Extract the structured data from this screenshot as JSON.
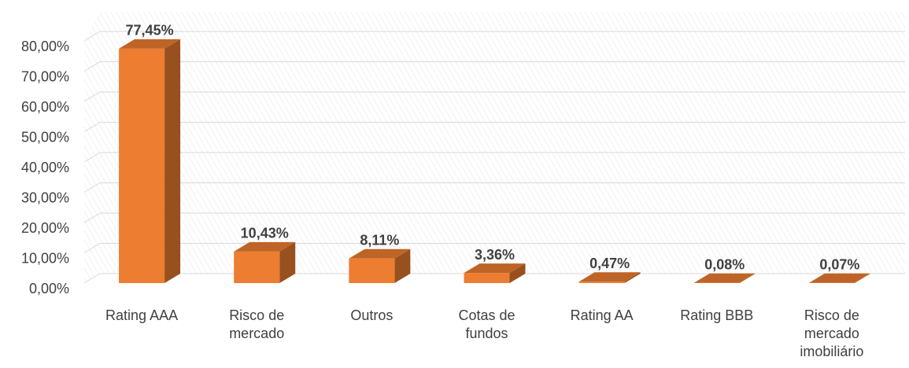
{
  "chart_data": {
    "type": "bar3d",
    "categories": [
      "Rating AAA",
      "Risco de mercado",
      "Outros",
      "Cotas de fundos",
      "Rating AA",
      "Rating BBB",
      "Risco de mercado imobiliário"
    ],
    "values": [
      77.45,
      10.43,
      8.11,
      3.36,
      0.47,
      0.08,
      0.07
    ],
    "value_labels": [
      "77,45%",
      "10,43%",
      "8,11%",
      "3,36%",
      "0,47%",
      "0,08%",
      "0,07%"
    ],
    "color": "#ed7d31",
    "ylim": [
      0,
      80
    ],
    "yticks": [
      {
        "value": 0,
        "label": "0,00%"
      },
      {
        "value": 10,
        "label": "10,00%"
      },
      {
        "value": 20,
        "label": "20,00%"
      },
      {
        "value": 30,
        "label": "30,00%"
      },
      {
        "value": 40,
        "label": "40,00%"
      },
      {
        "value": 50,
        "label": "50,00%"
      },
      {
        "value": 60,
        "label": "60,00%"
      },
      {
        "value": 70,
        "label": "70,00%"
      },
      {
        "value": 80,
        "label": "80,00%"
      }
    ],
    "grid": true
  }
}
